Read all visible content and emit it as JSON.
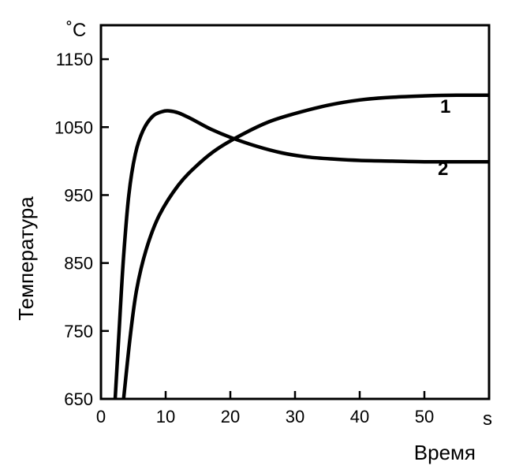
{
  "chart_data": {
    "type": "line",
    "title": "",
    "xlabel": "Время",
    "ylabel": "Температура",
    "x_unit": "s",
    "y_unit": "˚C",
    "xlim": [
      0,
      60
    ],
    "ylim": [
      650,
      1200
    ],
    "xticks": [
      0,
      10,
      20,
      30,
      40,
      50
    ],
    "yticks": [
      650,
      750,
      850,
      950,
      1050,
      1150
    ],
    "grid": false,
    "series": [
      {
        "name": "1",
        "x": [
          3.5,
          4.5,
          5.5,
          7,
          9,
          12,
          15,
          18,
          22,
          26,
          30,
          35,
          40,
          45,
          50,
          55,
          60
        ],
        "y": [
          650,
          740,
          810,
          870,
          920,
          965,
          995,
          1018,
          1040,
          1058,
          1070,
          1082,
          1090,
          1094,
          1096,
          1097,
          1097
        ]
      },
      {
        "name": "2",
        "x": [
          2.2,
          2.8,
          3.5,
          4.3,
          5.3,
          6.5,
          8,
          9.5,
          10.5,
          12,
          14,
          17,
          20,
          24,
          28,
          32,
          36,
          40,
          45,
          50,
          55,
          60
        ],
        "y": [
          650,
          750,
          860,
          950,
          1010,
          1045,
          1066,
          1073,
          1074,
          1071,
          1062,
          1047,
          1035,
          1022,
          1012,
          1006,
          1003,
          1001,
          1000,
          999,
          999,
          999
        ]
      }
    ]
  }
}
